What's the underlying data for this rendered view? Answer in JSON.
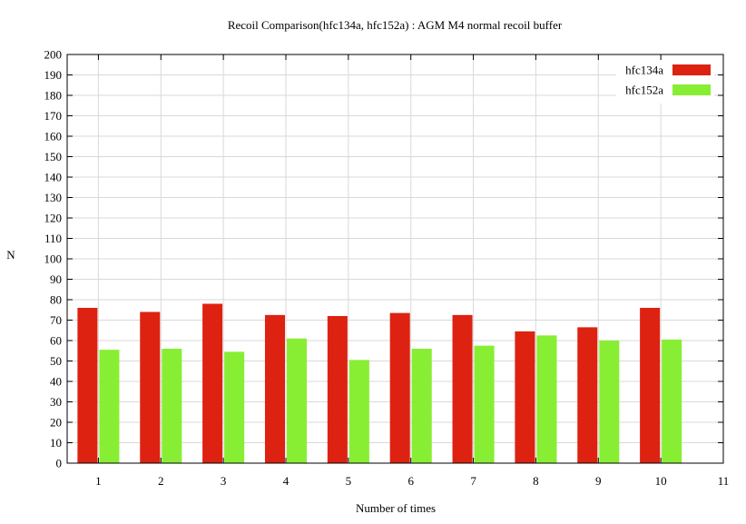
{
  "chart_data": {
    "type": "bar",
    "title": "Recoil Comparison(hfc134a, hfc152a) : AGM M4 normal recoil buffer",
    "xlabel": "Number of times",
    "ylabel": "N",
    "categories": [
      1,
      2,
      3,
      4,
      5,
      6,
      7,
      8,
      9,
      10
    ],
    "xlim": [
      0.5,
      11
    ],
    "xticks": [
      1,
      2,
      3,
      4,
      5,
      6,
      7,
      8,
      9,
      10,
      11
    ],
    "ylim": [
      0,
      200
    ],
    "yticks": [
      0,
      10,
      20,
      30,
      40,
      50,
      60,
      70,
      80,
      90,
      100,
      110,
      120,
      130,
      140,
      150,
      160,
      170,
      180,
      190,
      200
    ],
    "grid": true,
    "legend_position": "top-right",
    "series": [
      {
        "name": "hfc134a",
        "color": "#dd2211",
        "values": [
          76,
          74,
          78,
          72.5,
          72,
          73.5,
          72.5,
          64.5,
          66.5,
          76
        ]
      },
      {
        "name": "hfc152a",
        "color": "#88ee33",
        "values": [
          55.5,
          56,
          54.5,
          61,
          50.5,
          56,
          57.5,
          62.5,
          60,
          60.5
        ]
      }
    ]
  }
}
